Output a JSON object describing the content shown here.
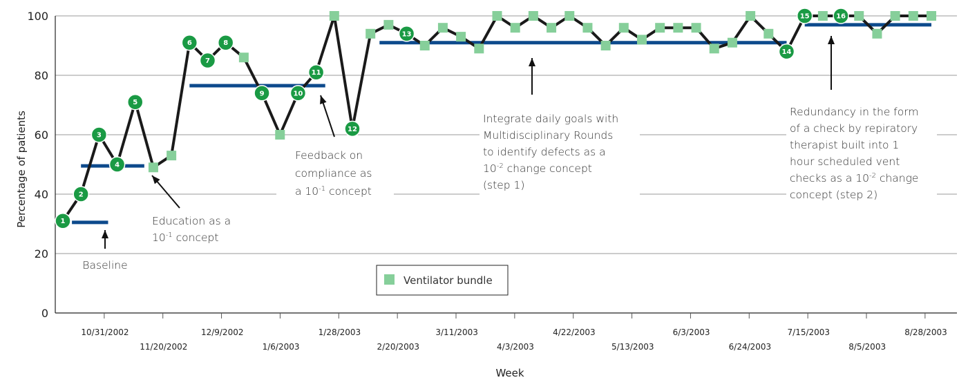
{
  "chart_data": {
    "type": "line",
    "xlabel": "Week",
    "ylabel": "Percentage of patients",
    "ylim": [
      0,
      100
    ],
    "yticks": [
      "0",
      "20",
      "40",
      "60",
      "80",
      "100"
    ],
    "grid": "horizontal",
    "x_tick_labels": [
      "10/31/2002",
      "11/20/2002",
      "12/9/2002",
      "1/6/2003",
      "1/28/2003",
      "2/20/2003",
      "3/11/2003",
      "4/3/2003",
      "4/22/2003",
      "5/13/2003",
      "6/3/2003",
      "6/24/2003",
      "7/15/2003",
      "8/5/2003",
      "8/28/2003"
    ],
    "legend": {
      "position": "bottom-center",
      "entries": [
        "Ventilator bundle"
      ]
    },
    "series": [
      {
        "name": "Ventilator bundle",
        "color": "#86cf9a",
        "line_color": "#1a1a1a",
        "values": [
          31,
          40,
          60,
          50,
          71,
          49,
          53,
          91,
          85,
          91,
          86,
          74,
          60,
          74,
          81,
          100,
          62,
          94,
          97,
          94,
          90,
          96,
          93,
          89,
          100,
          96,
          100,
          96,
          100,
          96,
          90,
          96,
          92,
          96,
          96,
          96,
          89,
          91,
          100,
          94,
          88,
          100,
          100,
          100,
          100,
          94,
          100,
          100,
          100
        ],
        "numbered_points": [
          {
            "index": 0,
            "label": "1"
          },
          {
            "index": 1,
            "label": "2"
          },
          {
            "index": 2,
            "label": "3"
          },
          {
            "index": 3,
            "label": "4"
          },
          {
            "index": 4,
            "label": "5"
          },
          {
            "index": 7,
            "label": "6"
          },
          {
            "index": 8,
            "label": "7"
          },
          {
            "index": 9,
            "label": "8"
          },
          {
            "index": 11,
            "label": "9"
          },
          {
            "index": 13,
            "label": "10"
          },
          {
            "index": 14,
            "label": "11"
          },
          {
            "index": 16,
            "label": "12"
          },
          {
            "index": 19,
            "label": "13"
          },
          {
            "index": 40,
            "label": "14"
          },
          {
            "index": 41,
            "label": "15"
          },
          {
            "index": 43,
            "label": "16"
          }
        ]
      }
    ],
    "phase_lines": [
      {
        "from": 0.5,
        "to": 2.5,
        "value": 30.5,
        "color": "#0d4a8c"
      },
      {
        "from": 1.0,
        "to": 4.5,
        "value": 49.5,
        "color": "#0d4a8c"
      },
      {
        "from": 7.0,
        "to": 14.5,
        "value": 76.5,
        "color": "#0d4a8c"
      },
      {
        "from": 17.5,
        "to": 40.0,
        "value": 91,
        "color": "#0d4a8c"
      },
      {
        "from": 41.0,
        "to": 48.0,
        "value": 97,
        "color": "#0d4a8c"
      }
    ],
    "annotations": [
      {
        "lines": [
          [
            "Baseline"
          ]
        ]
      },
      {
        "lines": [
          [
            "Education as a"
          ],
          [
            "10",
            "-1",
            " concept"
          ]
        ]
      },
      {
        "lines": [
          [
            "Feedback on"
          ],
          [
            "compliance as"
          ],
          [
            "a 10",
            "-1",
            " concept"
          ]
        ]
      },
      {
        "lines": [
          [
            "Integrate daily goals with"
          ],
          [
            "Multidisciplinary Rounds"
          ],
          [
            "to identify defects as a"
          ],
          [
            "10",
            "-2",
            " change concept"
          ],
          [
            "(step 1)"
          ]
        ]
      },
      {
        "lines": [
          [
            "Redundancy in the form"
          ],
          [
            "of a check by repiratory"
          ],
          [
            "therapist built into 1"
          ],
          [
            "hour scheduled vent"
          ],
          [
            "checks as a 10",
            "-2",
            " change"
          ],
          [
            "concept (step 2)"
          ]
        ]
      }
    ]
  }
}
